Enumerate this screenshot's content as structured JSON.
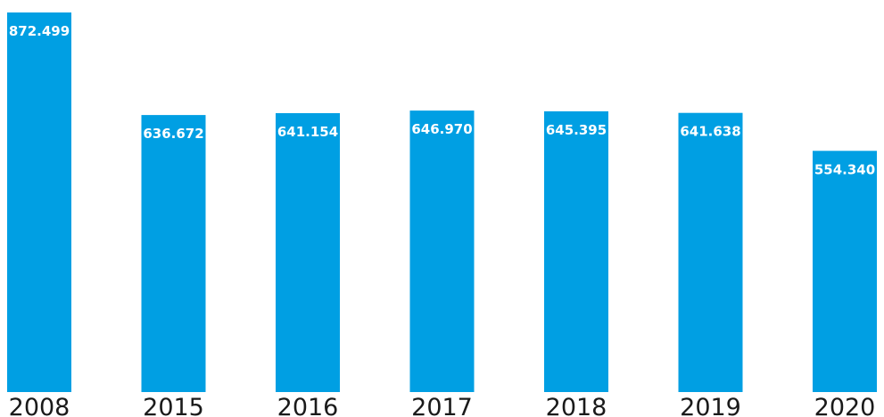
{
  "chart_data": {
    "type": "bar",
    "categories": [
      "2008",
      "2015",
      "2016",
      "2017",
      "2018",
      "2019",
      "2020"
    ],
    "values": [
      872.499,
      636.672,
      641.154,
      646.97,
      645.395,
      641.638,
      554.34
    ],
    "value_labels": [
      "872.499",
      "636.672",
      "641.154",
      "646.970",
      "645.395",
      "641.638",
      "554.340"
    ],
    "title": "",
    "xlabel": "",
    "ylabel": "",
    "ylim": [
      0,
      872.499
    ],
    "grid": false,
    "legend": "none",
    "bar_color": "#009fe3",
    "label_color": "#ffffff"
  }
}
